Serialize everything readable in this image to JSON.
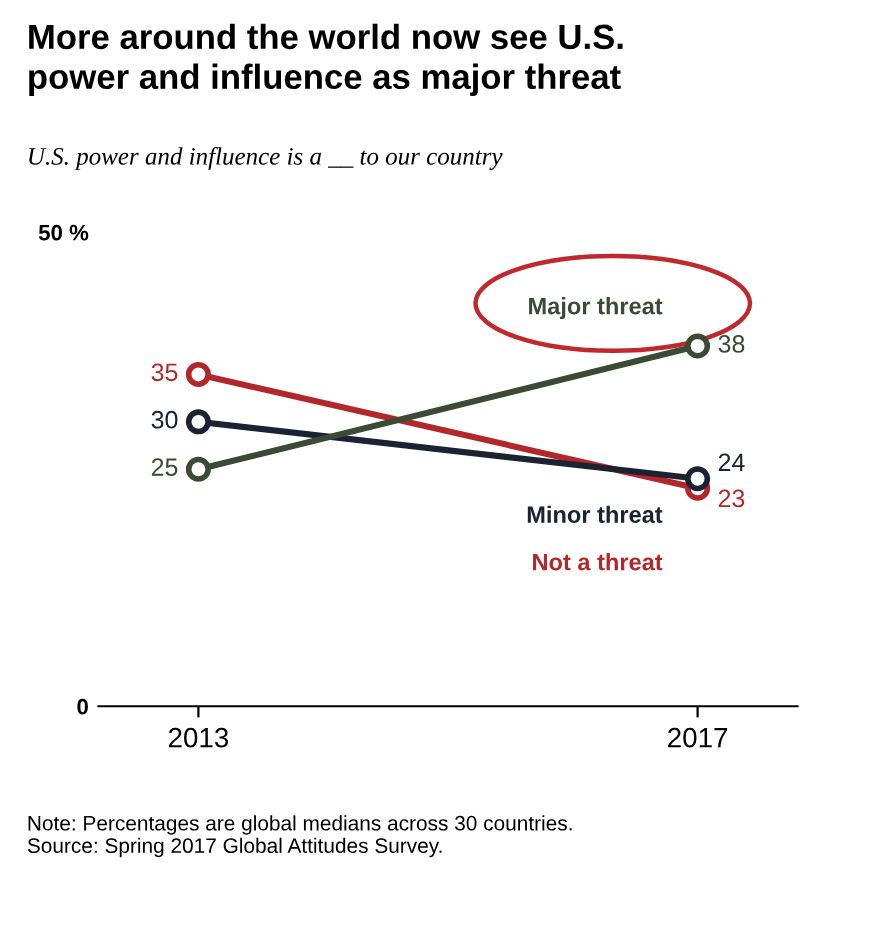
{
  "chart_data": {
    "type": "line",
    "title": "More around the world now see U.S.\npower and influence as major threat",
    "subtitle": "U.S. power and influence is a __ to our country",
    "categories": [
      "2013",
      "2017"
    ],
    "ylim": [
      0,
      50
    ],
    "yticks": [
      0,
      {
        "value": 50,
        "label": "50 %"
      }
    ],
    "marker": "circle",
    "data_labels": true,
    "grid": false,
    "legend": false,
    "series": [
      {
        "name": "Major threat",
        "color": "#3b4a35",
        "values": [
          25,
          38
        ]
      },
      {
        "name": "Minor threat",
        "color": "#1c2233",
        "values": [
          30,
          24
        ]
      },
      {
        "name": "Not a threat",
        "color": "#b3262a",
        "values": [
          35,
          23
        ]
      }
    ],
    "annotations": [
      "Note: Percentages are global medians across 30 countries.\nSource: Spring 2017 Global Attitudes Survey."
    ]
  }
}
